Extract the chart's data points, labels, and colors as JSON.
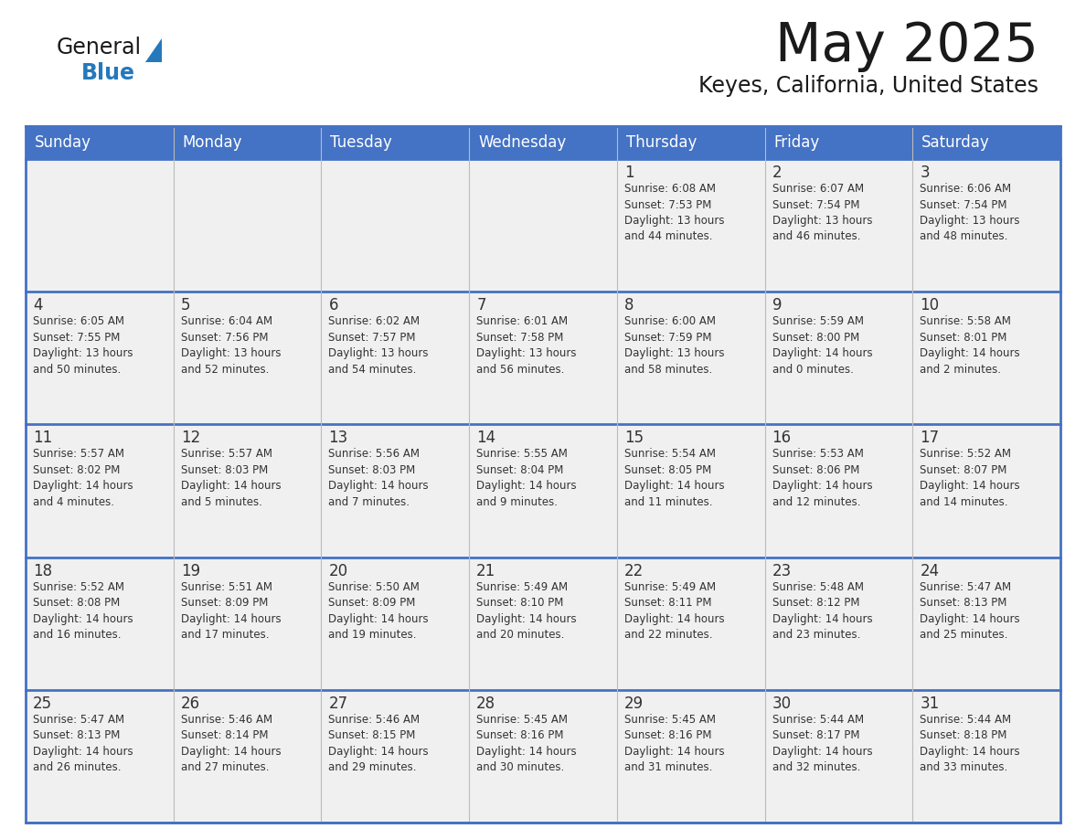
{
  "title": "May 2025",
  "subtitle": "Keyes, California, United States",
  "header_bg_color": "#4472C4",
  "header_text_color": "#FFFFFF",
  "cell_bg_color": "#F0F0F0",
  "border_color": "#4472C4",
  "text_color": "#333333",
  "day_headers": [
    "Sunday",
    "Monday",
    "Tuesday",
    "Wednesday",
    "Thursday",
    "Friday",
    "Saturday"
  ],
  "weeks": [
    [
      {
        "day": "",
        "info": ""
      },
      {
        "day": "",
        "info": ""
      },
      {
        "day": "",
        "info": ""
      },
      {
        "day": "",
        "info": ""
      },
      {
        "day": "1",
        "info": "Sunrise: 6:08 AM\nSunset: 7:53 PM\nDaylight: 13 hours\nand 44 minutes."
      },
      {
        "day": "2",
        "info": "Sunrise: 6:07 AM\nSunset: 7:54 PM\nDaylight: 13 hours\nand 46 minutes."
      },
      {
        "day": "3",
        "info": "Sunrise: 6:06 AM\nSunset: 7:54 PM\nDaylight: 13 hours\nand 48 minutes."
      }
    ],
    [
      {
        "day": "4",
        "info": "Sunrise: 6:05 AM\nSunset: 7:55 PM\nDaylight: 13 hours\nand 50 minutes."
      },
      {
        "day": "5",
        "info": "Sunrise: 6:04 AM\nSunset: 7:56 PM\nDaylight: 13 hours\nand 52 minutes."
      },
      {
        "day": "6",
        "info": "Sunrise: 6:02 AM\nSunset: 7:57 PM\nDaylight: 13 hours\nand 54 minutes."
      },
      {
        "day": "7",
        "info": "Sunrise: 6:01 AM\nSunset: 7:58 PM\nDaylight: 13 hours\nand 56 minutes."
      },
      {
        "day": "8",
        "info": "Sunrise: 6:00 AM\nSunset: 7:59 PM\nDaylight: 13 hours\nand 58 minutes."
      },
      {
        "day": "9",
        "info": "Sunrise: 5:59 AM\nSunset: 8:00 PM\nDaylight: 14 hours\nand 0 minutes."
      },
      {
        "day": "10",
        "info": "Sunrise: 5:58 AM\nSunset: 8:01 PM\nDaylight: 14 hours\nand 2 minutes."
      }
    ],
    [
      {
        "day": "11",
        "info": "Sunrise: 5:57 AM\nSunset: 8:02 PM\nDaylight: 14 hours\nand 4 minutes."
      },
      {
        "day": "12",
        "info": "Sunrise: 5:57 AM\nSunset: 8:03 PM\nDaylight: 14 hours\nand 5 minutes."
      },
      {
        "day": "13",
        "info": "Sunrise: 5:56 AM\nSunset: 8:03 PM\nDaylight: 14 hours\nand 7 minutes."
      },
      {
        "day": "14",
        "info": "Sunrise: 5:55 AM\nSunset: 8:04 PM\nDaylight: 14 hours\nand 9 minutes."
      },
      {
        "day": "15",
        "info": "Sunrise: 5:54 AM\nSunset: 8:05 PM\nDaylight: 14 hours\nand 11 minutes."
      },
      {
        "day": "16",
        "info": "Sunrise: 5:53 AM\nSunset: 8:06 PM\nDaylight: 14 hours\nand 12 minutes."
      },
      {
        "day": "17",
        "info": "Sunrise: 5:52 AM\nSunset: 8:07 PM\nDaylight: 14 hours\nand 14 minutes."
      }
    ],
    [
      {
        "day": "18",
        "info": "Sunrise: 5:52 AM\nSunset: 8:08 PM\nDaylight: 14 hours\nand 16 minutes."
      },
      {
        "day": "19",
        "info": "Sunrise: 5:51 AM\nSunset: 8:09 PM\nDaylight: 14 hours\nand 17 minutes."
      },
      {
        "day": "20",
        "info": "Sunrise: 5:50 AM\nSunset: 8:09 PM\nDaylight: 14 hours\nand 19 minutes."
      },
      {
        "day": "21",
        "info": "Sunrise: 5:49 AM\nSunset: 8:10 PM\nDaylight: 14 hours\nand 20 minutes."
      },
      {
        "day": "22",
        "info": "Sunrise: 5:49 AM\nSunset: 8:11 PM\nDaylight: 14 hours\nand 22 minutes."
      },
      {
        "day": "23",
        "info": "Sunrise: 5:48 AM\nSunset: 8:12 PM\nDaylight: 14 hours\nand 23 minutes."
      },
      {
        "day": "24",
        "info": "Sunrise: 5:47 AM\nSunset: 8:13 PM\nDaylight: 14 hours\nand 25 minutes."
      }
    ],
    [
      {
        "day": "25",
        "info": "Sunrise: 5:47 AM\nSunset: 8:13 PM\nDaylight: 14 hours\nand 26 minutes."
      },
      {
        "day": "26",
        "info": "Sunrise: 5:46 AM\nSunset: 8:14 PM\nDaylight: 14 hours\nand 27 minutes."
      },
      {
        "day": "27",
        "info": "Sunrise: 5:46 AM\nSunset: 8:15 PM\nDaylight: 14 hours\nand 29 minutes."
      },
      {
        "day": "28",
        "info": "Sunrise: 5:45 AM\nSunset: 8:16 PM\nDaylight: 14 hours\nand 30 minutes."
      },
      {
        "day": "29",
        "info": "Sunrise: 5:45 AM\nSunset: 8:16 PM\nDaylight: 14 hours\nand 31 minutes."
      },
      {
        "day": "30",
        "info": "Sunrise: 5:44 AM\nSunset: 8:17 PM\nDaylight: 14 hours\nand 32 minutes."
      },
      {
        "day": "31",
        "info": "Sunrise: 5:44 AM\nSunset: 8:18 PM\nDaylight: 14 hours\nand 33 minutes."
      }
    ]
  ],
  "logo_color_general": "#1a1a1a",
  "logo_color_blue": "#2479BD",
  "logo_triangle_color": "#2479BD",
  "figsize": [
    11.88,
    9.18
  ],
  "dpi": 100
}
